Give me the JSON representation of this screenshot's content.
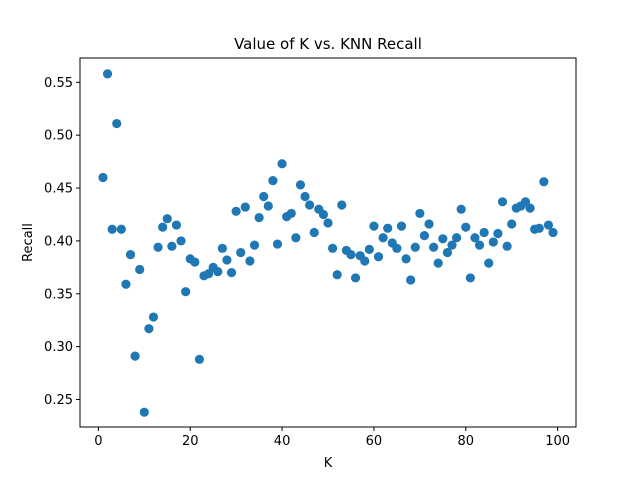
{
  "chart_data": {
    "type": "scatter",
    "title": "Value of K vs. KNN Recall",
    "xlabel": "K",
    "ylabel": "Recall",
    "xlim": [
      -4,
      104
    ],
    "ylim": [
      0.224,
      0.573
    ],
    "xticks": [
      0,
      20,
      40,
      60,
      80,
      100
    ],
    "yticks": [
      0.25,
      0.3,
      0.35,
      0.4,
      0.45,
      0.5,
      0.55
    ],
    "grid": false,
    "marker_color": "#1f77b4",
    "series": [
      {
        "x": [
          1,
          2,
          3,
          4,
          5,
          6,
          7,
          8,
          9,
          10,
          11,
          12,
          13,
          14,
          15,
          16,
          17,
          18,
          19,
          20,
          21,
          22,
          23,
          24,
          25,
          26,
          27,
          28,
          29,
          30,
          31,
          32,
          33,
          34,
          35,
          36,
          37,
          38,
          39,
          40,
          41,
          42,
          43,
          44,
          45,
          46,
          47,
          48,
          49,
          50,
          51,
          52,
          53,
          54,
          55,
          56,
          57,
          58,
          59,
          60,
          61,
          62,
          63,
          64,
          65,
          66,
          67,
          68,
          69,
          70,
          71,
          72,
          73,
          74,
          75,
          76,
          77,
          78,
          79,
          80,
          81,
          82,
          83,
          84,
          85,
          86,
          87,
          88,
          89,
          90,
          91,
          92,
          93,
          94,
          95,
          96,
          97,
          98,
          99
        ],
        "y": [
          0.46,
          0.558,
          0.411,
          0.511,
          0.411,
          0.359,
          0.387,
          0.291,
          0.373,
          0.238,
          0.317,
          0.328,
          0.394,
          0.413,
          0.421,
          0.395,
          0.415,
          0.4,
          0.352,
          0.383,
          0.38,
          0.288,
          0.367,
          0.369,
          0.375,
          0.371,
          0.393,
          0.382,
          0.37,
          0.428,
          0.389,
          0.432,
          0.381,
          0.396,
          0.422,
          0.442,
          0.433,
          0.457,
          0.397,
          0.473,
          0.423,
          0.426,
          0.403,
          0.453,
          0.442,
          0.434,
          0.408,
          0.43,
          0.425,
          0.417,
          0.393,
          0.368,
          0.434,
          0.391,
          0.387,
          0.365,
          0.386,
          0.381,
          0.392,
          0.414,
          0.385,
          0.403,
          0.412,
          0.398,
          0.393,
          0.414,
          0.383,
          0.363,
          0.394,
          0.426,
          0.405,
          0.416,
          0.394,
          0.379,
          0.402,
          0.389,
          0.396,
          0.403,
          0.43,
          0.413,
          0.365,
          0.403,
          0.396,
          0.408,
          0.379,
          0.399,
          0.407,
          0.437,
          0.395,
          0.416,
          0.431,
          0.433,
          0.437,
          0.431,
          0.411,
          0.412,
          0.456,
          0.415,
          0.408
        ]
      }
    ]
  }
}
